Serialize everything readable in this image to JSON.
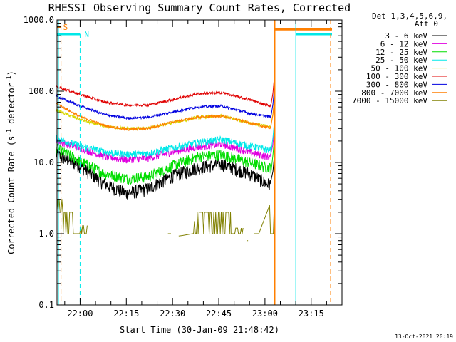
{
  "chart_data": {
    "type": "line",
    "title": "RHESSI Observing Summary Count Rates, Corrected",
    "xlabel": "Start Time (30-Jan-09 21:48:42)",
    "ylabel": "Corrected Count Rate (s",
    "ylabel_exp": "-1",
    "ylabel_mid": " detector",
    "ylabel_end": ")",
    "y_scale": "log",
    "ylim": [
      0.1,
      1000
    ],
    "y_ticks": [
      "0.1",
      "1.0",
      "10.0",
      "100.0",
      "1000.0"
    ],
    "x_range_minutes": [
      -7.5,
      85
    ],
    "x_ticks": [
      {
        "label": "22:00",
        "minute": 0
      },
      {
        "label": "22:15",
        "minute": 15
      },
      {
        "label": "22:30",
        "minute": 30
      },
      {
        "label": "22:45",
        "minute": 45
      },
      {
        "label": "23:00",
        "minute": 60
      },
      {
        "label": "23:15",
        "minute": 75
      }
    ],
    "x_unit": "minutes after 22:00",
    "legend_header": [
      "Det 1,3,4,5,6,9,",
      "Att 0"
    ],
    "legend_position": "right",
    "series": [
      {
        "name": "3 - 6 keV",
        "color": "#000000",
        "profile": [
          [
            -8,
            13
          ],
          [
            0,
            9
          ],
          [
            8,
            5
          ],
          [
            15,
            3.7
          ],
          [
            22,
            4.3
          ],
          [
            30,
            6.5
          ],
          [
            38,
            8.5
          ],
          [
            46,
            9.5
          ],
          [
            55,
            7
          ],
          [
            61,
            5
          ]
        ],
        "noise": 0.22
      },
      {
        "name": "6 - 12 keV",
        "color": "#e000e0",
        "profile": [
          [
            -8,
            20
          ],
          [
            0,
            16
          ],
          [
            8,
            12
          ],
          [
            15,
            11
          ],
          [
            22,
            11.5
          ],
          [
            30,
            14
          ],
          [
            38,
            16.5
          ],
          [
            46,
            18
          ],
          [
            55,
            14
          ],
          [
            61,
            12
          ]
        ],
        "noise": 0.12
      },
      {
        "name": "12 - 25 keV",
        "color": "#00dd00",
        "profile": [
          [
            -8,
            16
          ],
          [
            0,
            10.5
          ],
          [
            8,
            7
          ],
          [
            15,
            6
          ],
          [
            22,
            6.3
          ],
          [
            30,
            9
          ],
          [
            38,
            12
          ],
          [
            46,
            13
          ],
          [
            55,
            10
          ],
          [
            61,
            8.5
          ]
        ],
        "noise": 0.18
      },
      {
        "name": "25 - 50 keV",
        "color": "#00e8e8",
        "profile": [
          [
            -8,
            22
          ],
          [
            0,
            17
          ],
          [
            8,
            14
          ],
          [
            15,
            13
          ],
          [
            22,
            13.5
          ],
          [
            30,
            16
          ],
          [
            38,
            19
          ],
          [
            46,
            21
          ],
          [
            55,
            17
          ],
          [
            61,
            15
          ]
        ],
        "noise": 0.12
      },
      {
        "name": "50 - 100 keV",
        "color": "#d8d800",
        "profile": [
          [
            -8,
            55
          ],
          [
            0,
            40
          ],
          [
            8,
            32
          ],
          [
            15,
            30
          ],
          [
            22,
            30
          ],
          [
            30,
            36
          ],
          [
            38,
            43
          ],
          [
            46,
            45
          ],
          [
            55,
            36
          ],
          [
            61,
            32
          ]
        ],
        "noise": 0.05
      },
      {
        "name": "100 - 300 keV",
        "color": "#e00000",
        "profile": [
          [
            -8,
            118
          ],
          [
            0,
            90
          ],
          [
            8,
            70
          ],
          [
            15,
            64
          ],
          [
            22,
            64
          ],
          [
            30,
            76
          ],
          [
            38,
            92
          ],
          [
            46,
            95
          ],
          [
            55,
            76
          ],
          [
            61,
            63
          ]
        ],
        "noise": 0.04
      },
      {
        "name": "300 - 800 keV",
        "color": "#0000e0",
        "profile": [
          [
            -8,
            86
          ],
          [
            0,
            62
          ],
          [
            8,
            47
          ],
          [
            15,
            42
          ],
          [
            22,
            43
          ],
          [
            30,
            51
          ],
          [
            38,
            60
          ],
          [
            46,
            62
          ],
          [
            55,
            49
          ],
          [
            61,
            44
          ]
        ],
        "noise": 0.04
      },
      {
        "name": "800 - 7000 keV",
        "color": "#ff7f00",
        "profile": [
          [
            -8,
            68
          ],
          [
            0,
            44
          ],
          [
            8,
            33
          ],
          [
            15,
            29
          ],
          [
            22,
            30
          ],
          [
            30,
            37
          ],
          [
            38,
            43
          ],
          [
            46,
            45
          ],
          [
            55,
            36
          ],
          [
            61,
            31
          ]
        ],
        "noise": 0.04
      },
      {
        "name": "7000 - 15000 keV",
        "color": "#808000",
        "profile": [],
        "noise": 0
      }
    ],
    "flags": [
      {
        "label": "S",
        "color": "#ff7f00",
        "style": "dashed",
        "bar": [
          -7.2,
          -6.2
        ]
      },
      {
        "label": "N",
        "color": "#00e8e8",
        "style": "dashed",
        "bar": [
          -7.2,
          0
        ]
      }
    ]
  },
  "footer": {
    "date_stamp": "13-Oct-2021 20:19"
  }
}
